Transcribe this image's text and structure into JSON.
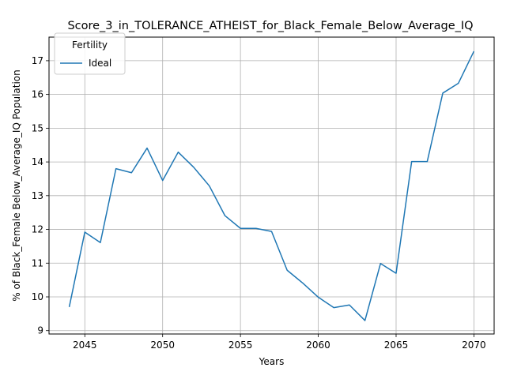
{
  "chart_data": {
    "type": "line",
    "title": "Score_3_in_TOLERANCE_ATHEIST_for_Black_Female_Below_Average_IQ",
    "xlabel": "Years",
    "ylabel": "% of Black_Female Below_Average_IQ Population",
    "xlim": [
      2042.7,
      2071.3
    ],
    "ylim": [
      8.9,
      17.7
    ],
    "xticks": [
      2045,
      2050,
      2055,
      2060,
      2065,
      2070
    ],
    "yticks": [
      9,
      10,
      11,
      12,
      13,
      14,
      15,
      16,
      17
    ],
    "grid": true,
    "legend": {
      "title": "Fertility",
      "placement": "top-left"
    },
    "series": [
      {
        "name": "Ideal",
        "color": "#1f77b4",
        "x": [
          2044,
          2045,
          2046,
          2047,
          2048,
          2049,
          2050,
          2051,
          2052,
          2053,
          2054,
          2055,
          2056,
          2057,
          2058,
          2059,
          2060,
          2061,
          2062,
          2063,
          2064,
          2065,
          2066,
          2067,
          2068,
          2069,
          2070
        ],
        "values": [
          9.7,
          11.92,
          11.61,
          13.8,
          13.68,
          14.41,
          13.45,
          14.29,
          13.84,
          13.29,
          12.41,
          12.03,
          12.03,
          11.94,
          10.79,
          10.41,
          9.99,
          9.68,
          9.76,
          9.3,
          10.99,
          10.7,
          14.01,
          14.01,
          16.04,
          16.33,
          17.28
        ]
      }
    ]
  }
}
